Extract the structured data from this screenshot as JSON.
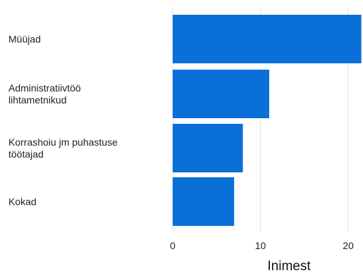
{
  "chart_data": {
    "type": "bar",
    "orientation": "horizontal",
    "categories": [
      [
        "Müüjad"
      ],
      [
        "Administratiivtöö",
        "lihtametnikud"
      ],
      [
        "Korrashoiu jm puhastuse",
        "töötajad"
      ],
      [
        "Kokad"
      ]
    ],
    "values": [
      21.5,
      11,
      8,
      7
    ],
    "xlabel": "Inimest",
    "ylabel": "",
    "xticks": [
      "0",
      "10",
      "20"
    ],
    "xtick_values": [
      0,
      10,
      20
    ],
    "grid": true,
    "bar_color": "#0a6fd6",
    "grid_color": "#ebebeb"
  }
}
